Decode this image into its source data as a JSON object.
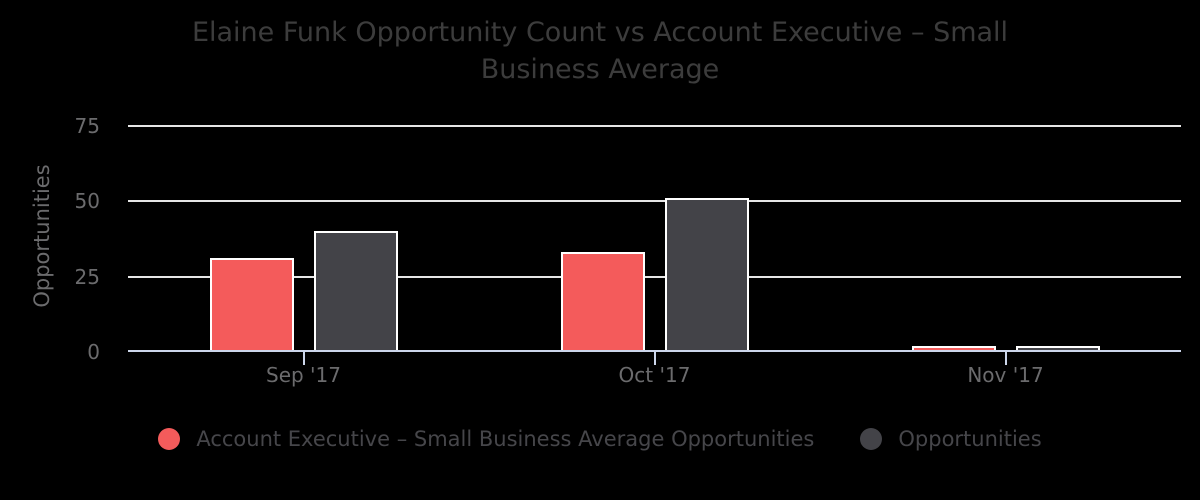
{
  "chart_data": {
    "type": "bar",
    "title": "Elaine Funk Opportunity Count vs Account Executive – Small Business Average",
    "ylabel": "Opportunities",
    "xlabel": "",
    "categories": [
      "Sep '17",
      "Oct '17",
      "Nov '17"
    ],
    "series": [
      {
        "name": "Account Executive – Small Business Average Opportunities",
        "values": [
          31,
          33,
          2
        ],
        "color": "#f45b5b"
      },
      {
        "name": "Opportunities",
        "values": [
          40,
          51,
          2
        ],
        "color": "#434348"
      }
    ],
    "yticks": [
      0,
      25,
      50,
      75
    ],
    "ylim": [
      0,
      80
    ],
    "grid": true,
    "legend_position": "bottom",
    "colors": {
      "background": "#000000",
      "bar_border": "#ffffff",
      "gridline": "#e6e6e6",
      "axis_line": "#ccd6eb",
      "title_text": "#3c3c3c",
      "axis_text": "#6b6b6d",
      "legend_text": "#46464a"
    }
  }
}
